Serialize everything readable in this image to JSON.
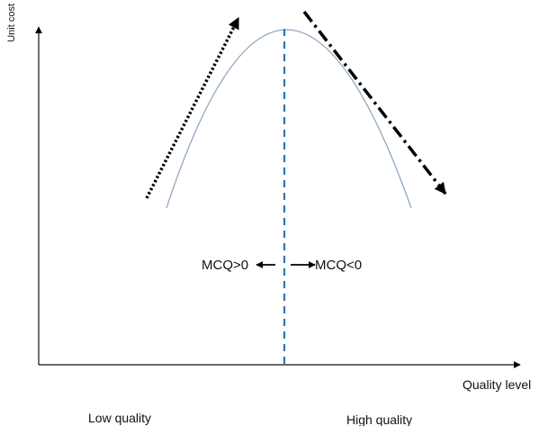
{
  "axes": {
    "y_label": "Unit cost",
    "x_label": "Quality level",
    "x_left_label": "Low quality",
    "x_right_label": "High quality"
  },
  "annotations": {
    "left_of_peak": "MCQ>0",
    "right_of_peak": "MCQ<0"
  },
  "colors": {
    "axis": "#111111",
    "curve": "#8fa7bf",
    "divider": "#2e75b6",
    "arrows": "#000000"
  }
}
